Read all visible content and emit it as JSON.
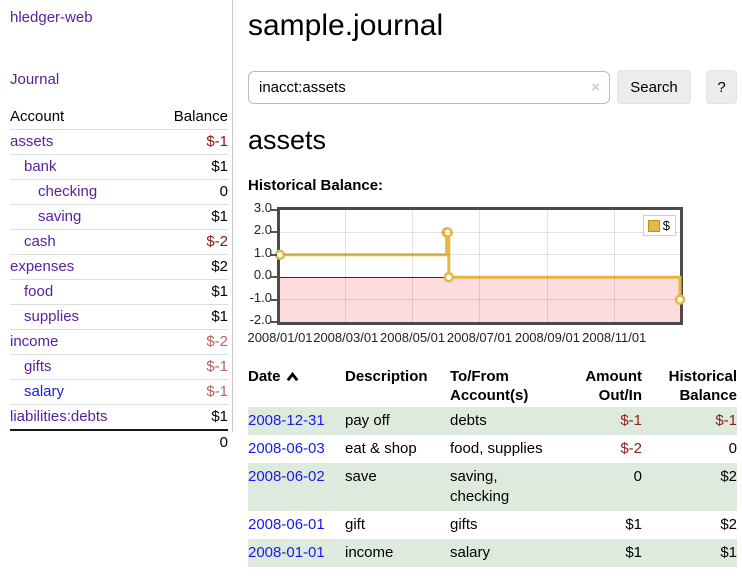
{
  "colors": {
    "link_purple": "#5a1e9e",
    "link_blue": "#1a1ae6",
    "negative_red": "#8b1410",
    "negative_light": "#b46262",
    "row_stripe_green": "#dfeade",
    "chart_line_gold": "#e6b843",
    "chart_negative_fill": "#fcdcdc",
    "chart_zero_line": "#7b0d0d"
  },
  "sidebar": {
    "app_title": "hledger-web",
    "nav": [
      {
        "label": "Journal"
      }
    ],
    "accounts_table": {
      "headers": [
        "Account",
        "Balance"
      ],
      "rows": [
        {
          "account": "assets",
          "balance": "$-1",
          "indent": 0,
          "bold": true,
          "negative": true
        },
        {
          "account": "bank",
          "balance": "$1",
          "indent": 1,
          "bold": true
        },
        {
          "account": "checking",
          "balance": "0",
          "indent": 2,
          "bold": true
        },
        {
          "account": "saving",
          "balance": "$1",
          "indent": 2,
          "bold": true
        },
        {
          "account": "cash",
          "balance": "$-2",
          "indent": 1,
          "bold": true,
          "negative": true
        },
        {
          "account": "expenses",
          "balance": "$2",
          "indent": 0
        },
        {
          "account": "food",
          "balance": "$1",
          "indent": 1
        },
        {
          "account": "supplies",
          "balance": "$1",
          "indent": 1
        },
        {
          "account": "income",
          "balance": "$-2",
          "indent": 0,
          "negative": true
        },
        {
          "account": "gifts",
          "balance": "$-1",
          "indent": 1,
          "negative": true
        },
        {
          "account": "salary",
          "balance": "$-1",
          "indent": 1,
          "negative": true,
          "unvisited": true
        },
        {
          "account": "liabilities:debts",
          "balance": "$1",
          "indent": 0
        }
      ],
      "total": "0"
    }
  },
  "header": {
    "title": "sample.journal"
  },
  "search": {
    "query": "inacct:assets",
    "clear_icon": "×",
    "search_label": "Search",
    "help_label": "?"
  },
  "account_page": {
    "title": "assets",
    "chart_label": "Historical Balance:"
  },
  "chart_data": {
    "type": "line",
    "title": "Historical Balance",
    "step": true,
    "legend": "$",
    "legend_position": "top-right",
    "grid": true,
    "ylim": [
      -2,
      3
    ],
    "y_ticks": [
      "3.0",
      "2.0",
      "1.0",
      "0.0",
      "-1.0",
      "-2.0"
    ],
    "x_tick_labels": [
      "2008/01/01",
      "2008/03/01",
      "2008/05/01",
      "2008/07/01",
      "2008/09/01",
      "2008/11/01"
    ],
    "x_range": [
      "2008-01-01",
      "2008-12-31"
    ],
    "series": [
      {
        "name": "$",
        "points": [
          {
            "date": "2008-01-01",
            "balance": 1
          },
          {
            "date": "2008-06-01",
            "balance": 2
          },
          {
            "date": "2008-06-02",
            "balance": 2
          },
          {
            "date": "2008-06-03",
            "balance": 0
          },
          {
            "date": "2008-12-31",
            "balance": -1
          }
        ]
      }
    ]
  },
  "register_table": {
    "headers": {
      "date": "Date",
      "description": "Description",
      "accounts": "To/From Account(s)",
      "amount": "Amount Out/In",
      "balance": "Historical Balance"
    },
    "sort": {
      "column": "date",
      "icon": "chevron-up"
    },
    "rows": [
      {
        "date": "2008-12-31",
        "description": "pay off",
        "accounts": "debts",
        "amount": "$-1",
        "balance": "$-1",
        "amount_negative": true,
        "balance_negative": true
      },
      {
        "date": "2008-06-03",
        "description": "eat & shop",
        "accounts": "food, supplies",
        "amount": "$-2",
        "balance": "0",
        "amount_negative": true
      },
      {
        "date": "2008-06-02",
        "description": "save",
        "accounts": "saving, checking",
        "amount": "0",
        "balance": "$2"
      },
      {
        "date": "2008-06-01",
        "description": "gift",
        "accounts": "gifts",
        "amount": "$1",
        "balance": "$2"
      },
      {
        "date": "2008-01-01",
        "description": "income",
        "accounts": "salary",
        "amount": "$1",
        "balance": "$1"
      }
    ]
  }
}
